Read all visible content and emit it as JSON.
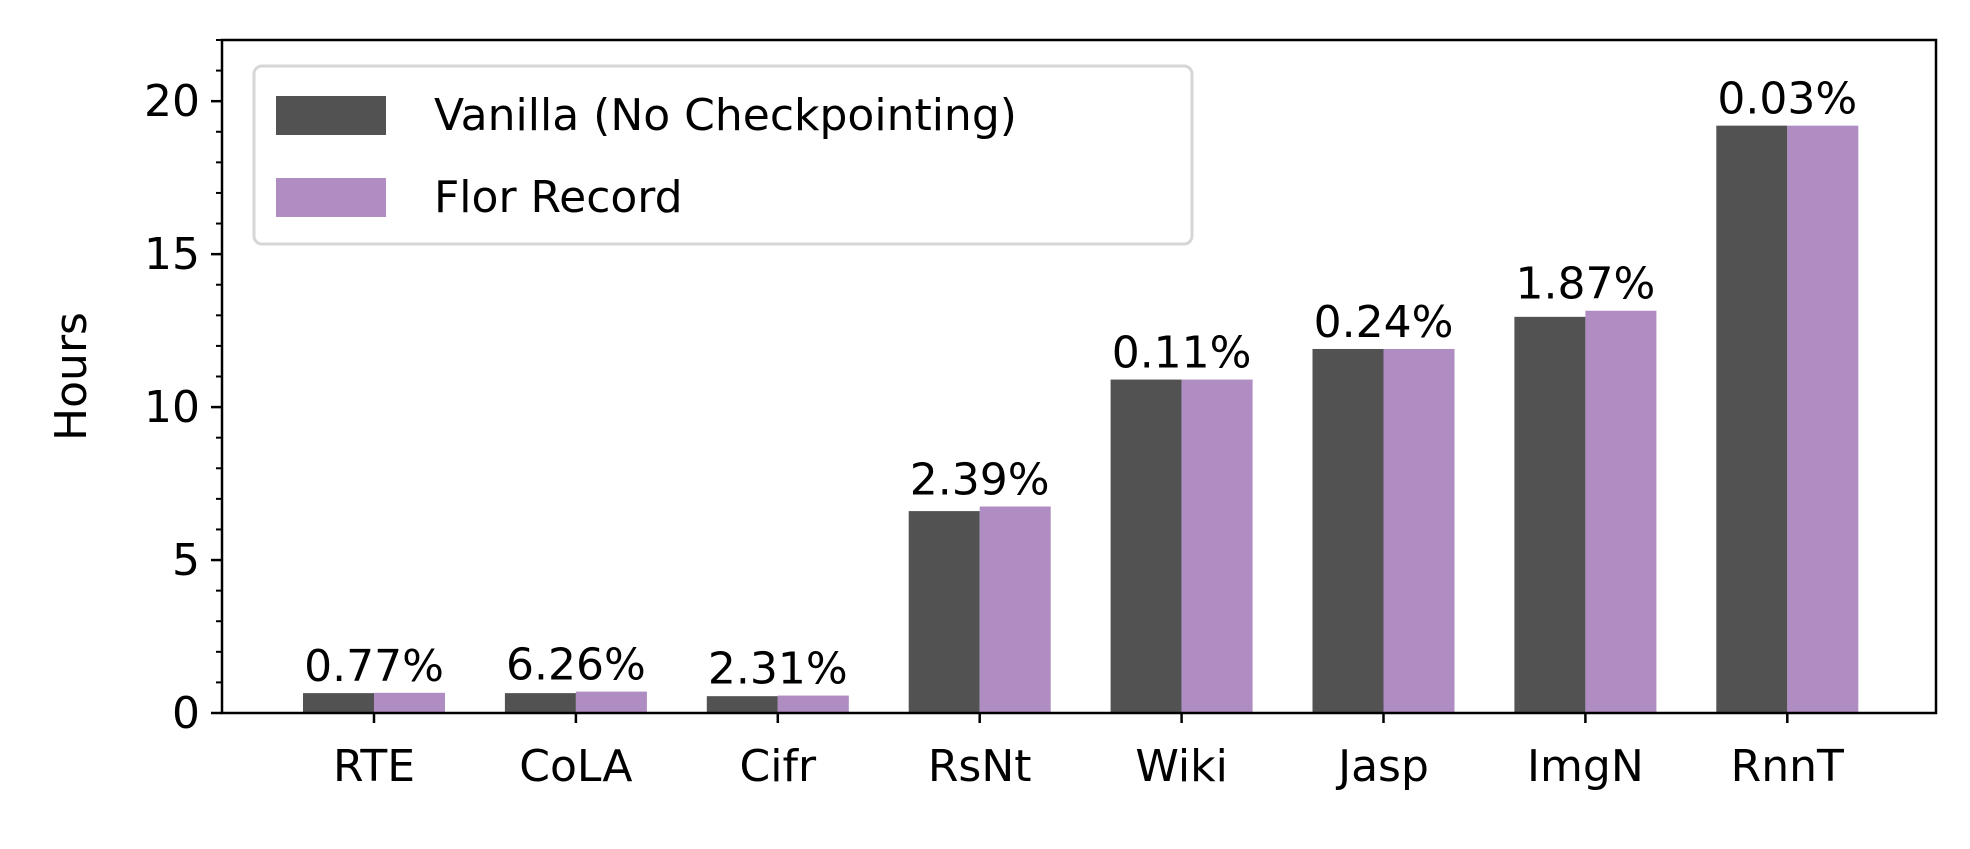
{
  "chart_data": {
    "type": "bar",
    "title": "",
    "xlabel": "",
    "ylabel": "Hours",
    "ylim": [
      0,
      22
    ],
    "yticks": [
      0,
      5,
      10,
      15,
      20
    ],
    "ytick_labels": [
      "0",
      "5",
      "10",
      "15",
      "20"
    ],
    "minor_yticks": true,
    "grid": false,
    "legend_position": "top-left",
    "categories": [
      "RTE",
      "CoLA",
      "Cifr",
      "RsNt",
      "Wiki",
      "Jasp",
      "ImgN",
      "RnnT"
    ],
    "series": [
      {
        "name": "Vanilla (No Checkpointing)",
        "color": "#525252",
        "values": [
          0.65,
          0.65,
          0.55,
          6.6,
          10.9,
          11.9,
          12.95,
          19.2
        ]
      },
      {
        "name": "Flor Record",
        "color": "#af8cc2",
        "values": [
          0.66,
          0.7,
          0.57,
          6.75,
          10.9,
          11.9,
          13.15,
          19.2
        ]
      }
    ],
    "annotations": [
      "0.77%",
      "6.26%",
      "2.31%",
      "2.39%",
      "0.11%",
      "0.24%",
      "1.87%",
      "0.03%"
    ]
  }
}
